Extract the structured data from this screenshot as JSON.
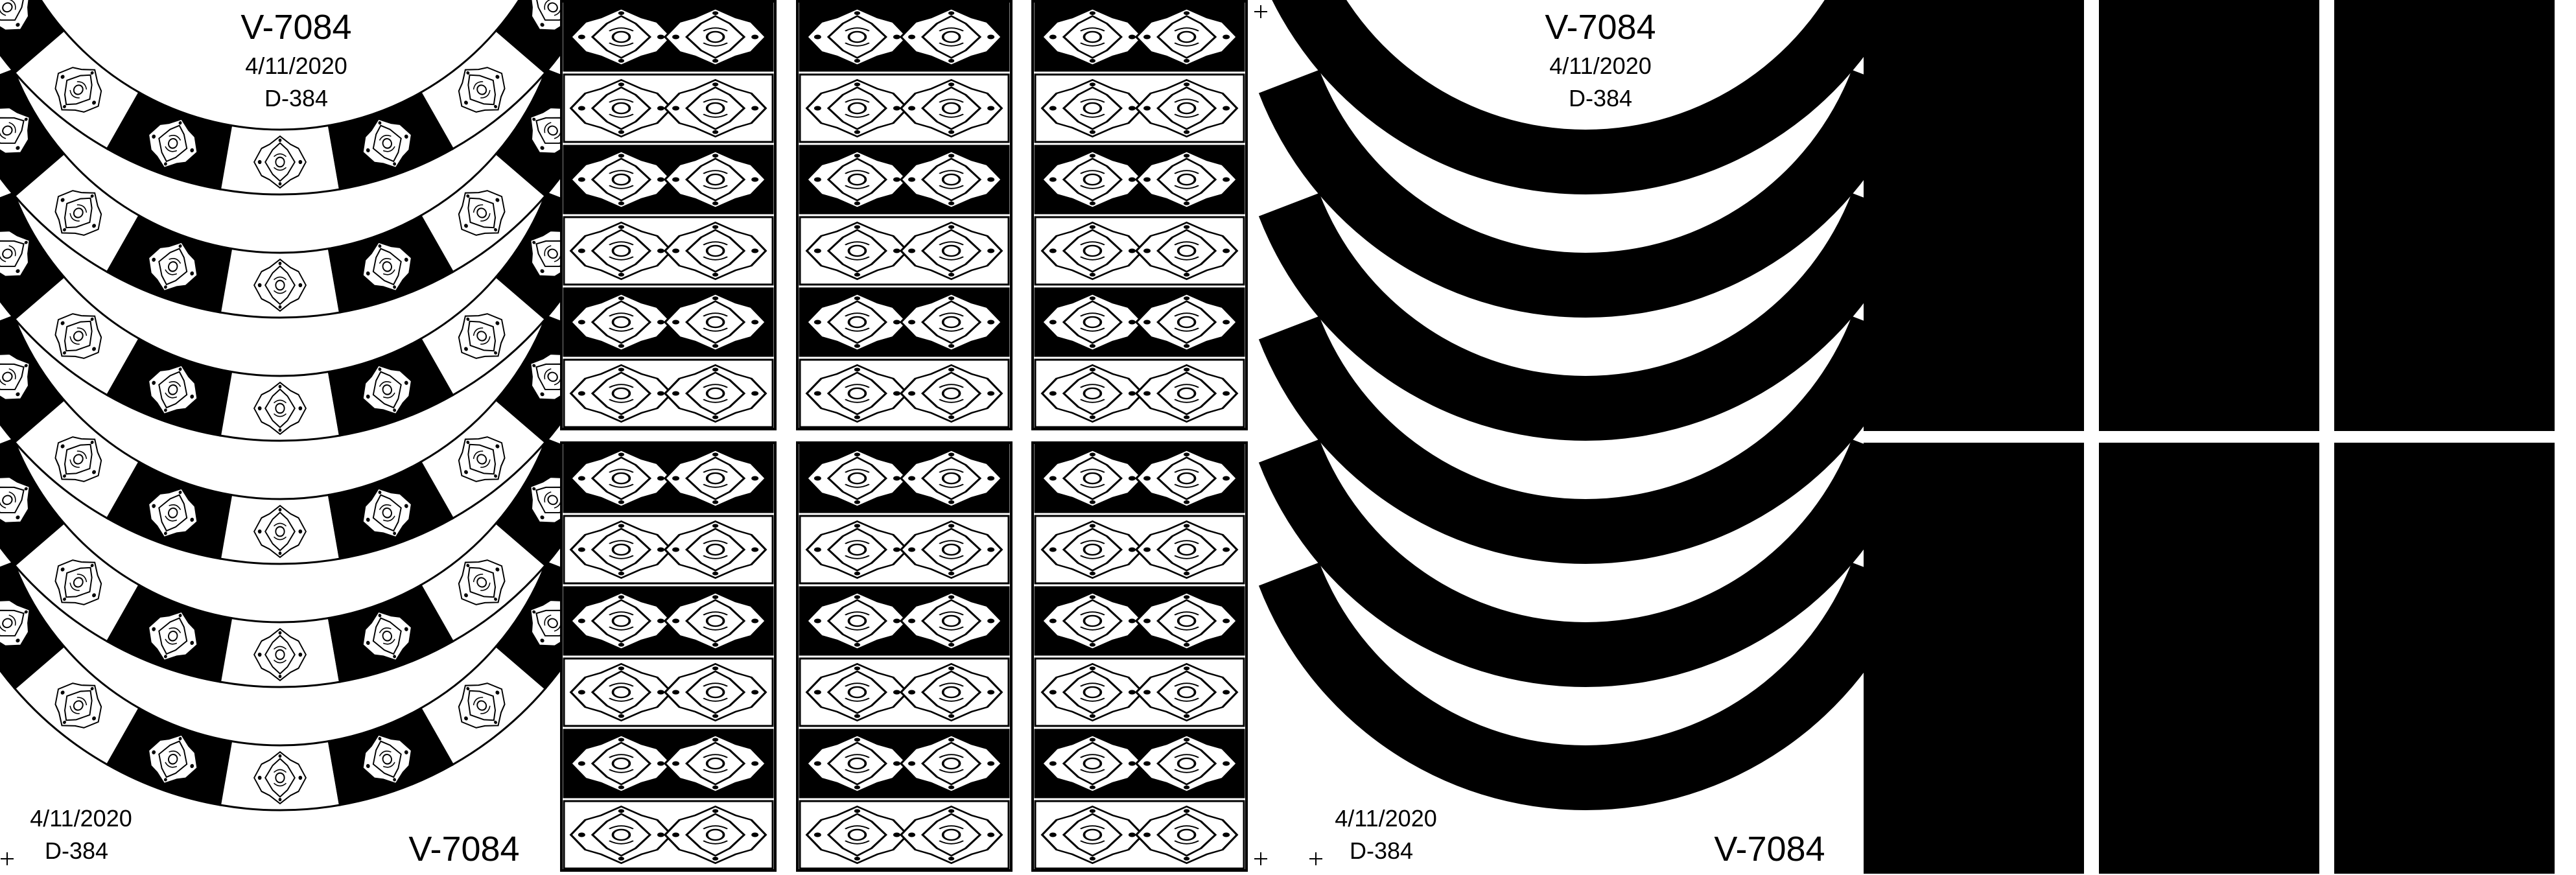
{
  "colors": {
    "ink": "#000000",
    "paper": "#ffffff"
  },
  "left_sheet": {
    "top_label": {
      "code": "V-7084",
      "date": "4/11/2020",
      "ref": "D-384"
    },
    "bottom_label": {
      "date": "4/11/2020",
      "ref": "D-384",
      "code": "V-7084"
    },
    "arc_band_count": 6,
    "arc_segment_count": 7,
    "panel_grid": {
      "columns": 3,
      "rows": 2,
      "stripes_per_panel": 6
    },
    "ornament_icon": "arabesque-medallion"
  },
  "right_sheet": {
    "top_label": {
      "code": "V-7084",
      "date": "4/11/2020",
      "ref": "D-384"
    },
    "bottom_label": {
      "date": "4/11/2020",
      "ref": "D-384",
      "code": "V-7084"
    },
    "arc_band_count": 6,
    "panel_grid": {
      "columns": 3,
      "rows": 2
    }
  },
  "registration_marks": [
    "crosshair-mark",
    "crosshair-mark",
    "crosshair-mark",
    "crosshair-mark",
    "crosshair-mark"
  ]
}
